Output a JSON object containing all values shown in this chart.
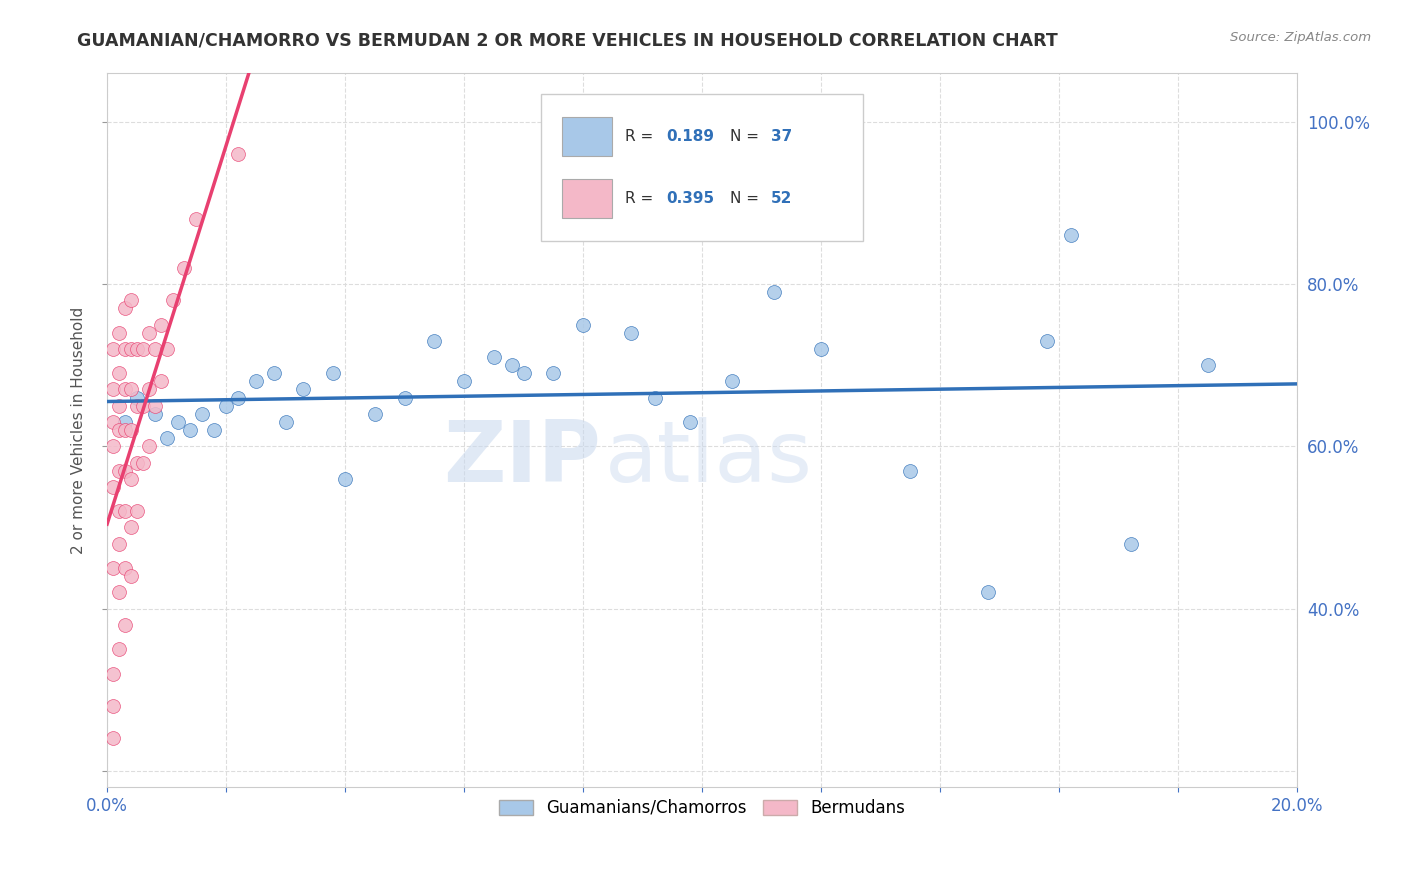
{
  "title": "GUAMANIAN/CHAMORRO VS BERMUDAN 2 OR MORE VEHICLES IN HOUSEHOLD CORRELATION CHART",
  "source": "Source: ZipAtlas.com",
  "ylabel": "2 or more Vehicles in Household",
  "x_min": 0.0,
  "x_max": 0.2,
  "y_min": 0.18,
  "y_max": 1.06,
  "blue_color": "#a8c8e8",
  "pink_color": "#f4b8c8",
  "blue_line_color": "#3070b8",
  "pink_line_color": "#e84070",
  "watermark_zip": "ZIP",
  "watermark_atlas": "atlas",
  "legend_R_blue": "0.189",
  "legend_N_blue": "37",
  "legend_R_pink": "0.395",
  "legend_N_pink": "52",
  "legend_label_blue": "Guamanians/Chamorros",
  "legend_label_pink": "Bermudans",
  "blue_scatter_x": [
    0.003,
    0.005,
    0.008,
    0.01,
    0.012,
    0.014,
    0.016,
    0.018,
    0.02,
    0.022,
    0.025,
    0.028,
    0.03,
    0.033,
    0.038,
    0.04,
    0.045,
    0.05,
    0.055,
    0.06,
    0.065,
    0.068,
    0.07,
    0.075,
    0.08,
    0.088,
    0.092,
    0.098,
    0.105,
    0.112,
    0.12,
    0.135,
    0.148,
    0.158,
    0.162,
    0.172,
    0.185
  ],
  "blue_scatter_y": [
    0.63,
    0.66,
    0.64,
    0.61,
    0.63,
    0.62,
    0.64,
    0.62,
    0.65,
    0.66,
    0.68,
    0.69,
    0.63,
    0.67,
    0.69,
    0.56,
    0.64,
    0.66,
    0.73,
    0.68,
    0.71,
    0.7,
    0.69,
    0.69,
    0.75,
    0.74,
    0.66,
    0.63,
    0.68,
    0.79,
    0.72,
    0.57,
    0.42,
    0.73,
    0.86,
    0.48,
    0.7
  ],
  "pink_scatter_x": [
    0.001,
    0.001,
    0.001,
    0.001,
    0.001,
    0.001,
    0.001,
    0.001,
    0.001,
    0.002,
    0.002,
    0.002,
    0.002,
    0.002,
    0.002,
    0.002,
    0.002,
    0.002,
    0.003,
    0.003,
    0.003,
    0.003,
    0.003,
    0.003,
    0.003,
    0.003,
    0.004,
    0.004,
    0.004,
    0.004,
    0.004,
    0.004,
    0.004,
    0.005,
    0.005,
    0.005,
    0.005,
    0.006,
    0.006,
    0.006,
    0.007,
    0.007,
    0.007,
    0.008,
    0.008,
    0.009,
    0.009,
    0.01,
    0.011,
    0.013,
    0.015,
    0.022
  ],
  "pink_scatter_y": [
    0.24,
    0.28,
    0.32,
    0.45,
    0.55,
    0.6,
    0.63,
    0.67,
    0.72,
    0.35,
    0.42,
    0.48,
    0.52,
    0.57,
    0.62,
    0.65,
    0.69,
    0.74,
    0.38,
    0.45,
    0.52,
    0.57,
    0.62,
    0.67,
    0.72,
    0.77,
    0.44,
    0.5,
    0.56,
    0.62,
    0.67,
    0.72,
    0.78,
    0.52,
    0.58,
    0.65,
    0.72,
    0.58,
    0.65,
    0.72,
    0.6,
    0.67,
    0.74,
    0.65,
    0.72,
    0.68,
    0.75,
    0.72,
    0.78,
    0.82,
    0.88,
    0.96
  ],
  "background_color": "#ffffff",
  "grid_color": "#dddddd",
  "right_tick_color": "#4472c4",
  "text_color": "#555555"
}
